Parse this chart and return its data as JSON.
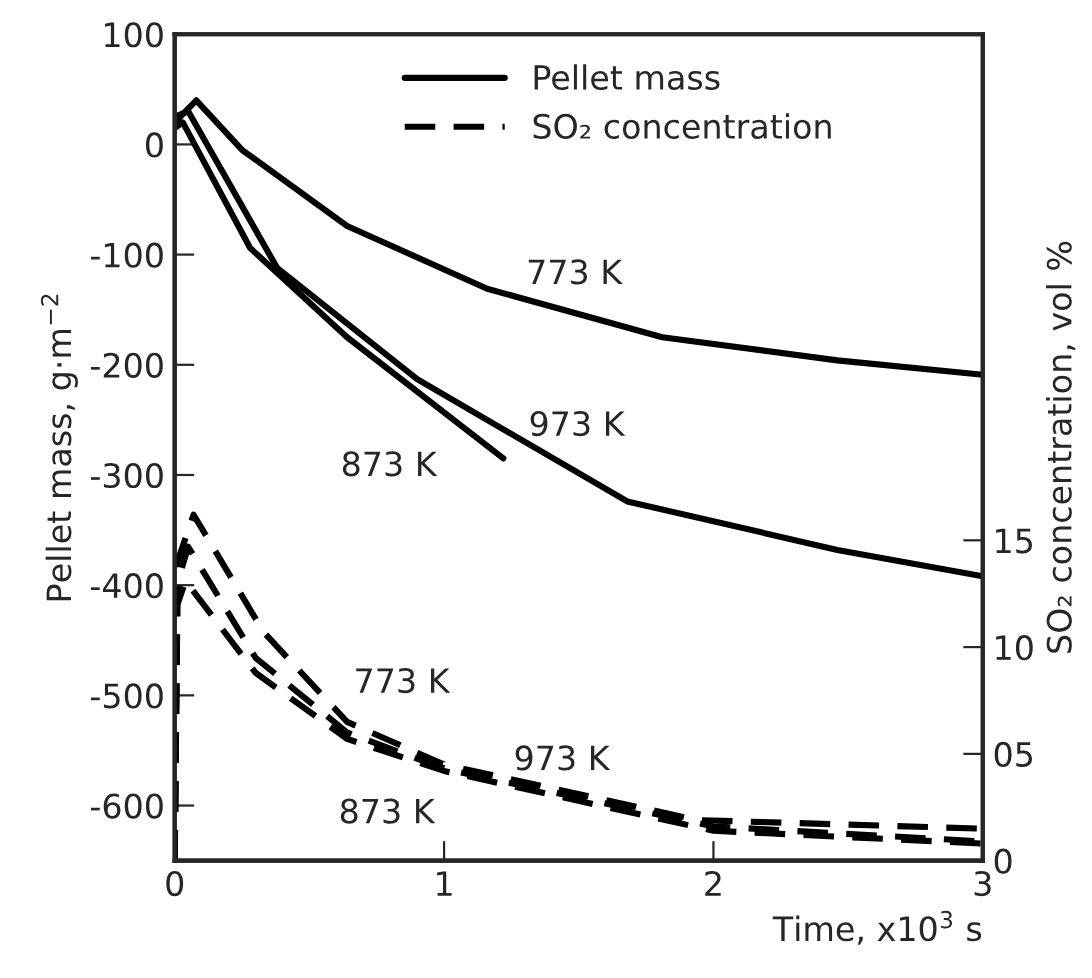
{
  "chart_data": {
    "type": "line",
    "xlabel": "Time, x10$^{3}$ s",
    "ylabel": "Pellet mass, g·m$^{−2}$",
    "y2label": "SO₂ concentration, vol %",
    "xlim": [
      0,
      3
    ],
    "xticks": [
      0,
      1,
      2,
      3
    ],
    "ylim": [
      -650,
      100
    ],
    "yticks": [
      -600,
      -500,
      -400,
      -300,
      -200,
      -100,
      0,
      100
    ],
    "y2lim": [
      0,
      38.7
    ],
    "y2ticks": [
      0,
      {
        "value": 5,
        "label": "05"
      },
      10,
      15
    ],
    "grid": false,
    "legend": "top",
    "marker": "none",
    "series": [
      {
        "name": "Pellet mass",
        "color": "#000000",
        "line_style": "solid",
        "x": [
          0,
          0.08,
          0.25,
          0.64,
          1.16,
          1.81,
          2.46,
          3.0
        ],
        "values": [
          20,
          40,
          -5,
          -74,
          -131,
          -175,
          -196,
          -209
        ]
      },
      {
        "color": "#000000",
        "line_style": "solid",
        "x": [
          0,
          0.05,
          0.38,
          0.9,
          1.68,
          2.46,
          3.0
        ],
        "values": [
          25,
          30,
          -112,
          -213,
          -324,
          -368,
          -392
        ]
      },
      {
        "color": "#000000",
        "line_style": "solid",
        "x": [
          0,
          0.03,
          0.28,
          0.64,
          1.22
        ],
        "values": [
          15,
          20,
          -94,
          -175,
          -285
        ]
      },
      {
        "name": "SO₂ concentration",
        "color": "#000000",
        "line_style": "dashed",
        "axis": "y2",
        "x": [
          0,
          0.01,
          0.07,
          0.33,
          0.64,
          1.0,
          1.94,
          2.99
        ],
        "values": [
          0,
          14,
          16.2,
          10.7,
          6.5,
          4.5,
          1.9,
          1.5
        ]
      },
      {
        "color": "#000000",
        "line_style": "dashed",
        "axis": "y2",
        "x": [
          0,
          0.01,
          0.05,
          0.3,
          0.64,
          1.0,
          2.0,
          3.0
        ],
        "values": [
          0,
          13,
          14.7,
          9.5,
          6.0,
          4.3,
          1.6,
          0.9
        ]
      },
      {
        "color": "#000000",
        "line_style": "dashed",
        "axis": "y2",
        "x": [
          0,
          0.01,
          0.04,
          0.3,
          0.64,
          1.0,
          2.0,
          3.0
        ],
        "values": [
          0,
          12,
          13.1,
          8.8,
          5.7,
          4.2,
          1.4,
          0.8
        ]
      }
    ],
    "annotations": [
      {
        "text": "773 K",
        "x": 1.16,
        "y": -131
      },
      {
        "text": "973 K",
        "x": 1.2,
        "y": -256
      },
      {
        "text": "873 K",
        "x": 1.22,
        "y": -285
      },
      {
        "text": "773 K",
        "x": 0.54,
        "y": -522
      },
      {
        "text": "973 K",
        "x": 1.0,
        "y": -562
      },
      {
        "text": "873 K",
        "x": 1.13,
        "y": -585
      }
    ]
  }
}
